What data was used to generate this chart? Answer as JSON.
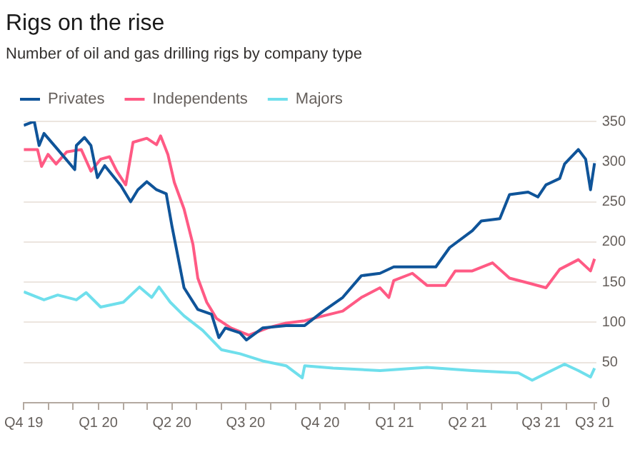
{
  "chart_data": {
    "type": "line",
    "title": "Rigs on the rise",
    "subtitle": "Number of oil and gas drilling rigs by company type",
    "xlim": [
      "2019-10-01",
      "2021-09-07"
    ],
    "xticks": [
      {
        "value": "2019-10-01",
        "label": "Q4 19"
      },
      {
        "value": "2019-11-01",
        "label": null
      },
      {
        "value": "2019-12-01",
        "label": null
      },
      {
        "value": "2020-01-01",
        "label": "Q1 20"
      },
      {
        "value": "2020-02-01",
        "label": null
      },
      {
        "value": "2020-03-01",
        "label": null
      },
      {
        "value": "2020-04-01",
        "label": "Q2 20"
      },
      {
        "value": "2020-05-01",
        "label": null
      },
      {
        "value": "2020-06-01",
        "label": null
      },
      {
        "value": "2020-07-01",
        "label": "Q3 20"
      },
      {
        "value": "2020-08-01",
        "label": null
      },
      {
        "value": "2020-09-01",
        "label": null
      },
      {
        "value": "2020-10-01",
        "label": "Q4 20"
      },
      {
        "value": "2020-11-01",
        "label": null
      },
      {
        "value": "2020-12-01",
        "label": null
      },
      {
        "value": "2021-01-01",
        "label": "Q1 21"
      },
      {
        "value": "2021-02-01",
        "label": null
      },
      {
        "value": "2021-03-01",
        "label": null
      },
      {
        "value": "2021-04-01",
        "label": "Q2 21"
      },
      {
        "value": "2021-05-01",
        "label": null
      },
      {
        "value": "2021-06-01",
        "label": null
      },
      {
        "value": "2021-07-01",
        "label": "Q3 21"
      },
      {
        "value": "2021-08-01",
        "label": null
      },
      {
        "value": "2021-09-05",
        "label": "Q3 21"
      }
    ],
    "ylim": [
      0,
      350
    ],
    "yticks": [
      0,
      50,
      100,
      150,
      200,
      250,
      300,
      350
    ],
    "grid": "y",
    "legend": "top left",
    "marker": "none",
    "line_style": "solid",
    "series": [
      {
        "name": "Privates",
        "color": "#0f5499",
        "x": [
          "2019-10-01",
          "2019-10-14",
          "2019-10-20",
          "2019-10-26",
          "2019-11-12",
          "2019-12-03",
          "2019-12-05",
          "2019-12-15",
          "2019-12-23",
          "2019-12-31",
          "2020-01-09",
          "2020-01-29",
          "2020-02-10",
          "2020-02-19",
          "2020-03-01",
          "2020-03-13",
          "2020-03-25",
          "2020-04-01",
          "2020-04-16",
          "2020-05-03",
          "2020-05-20",
          "2020-05-29",
          "2020-06-06",
          "2020-06-24",
          "2020-07-02",
          "2020-07-22",
          "2020-08-20",
          "2020-09-12",
          "2020-10-05",
          "2020-10-29",
          "2020-11-21",
          "2020-12-14",
          "2020-12-31",
          "2021-01-23",
          "2021-02-21",
          "2021-03-10",
          "2021-04-07",
          "2021-04-18",
          "2021-05-11",
          "2021-05-23",
          "2021-06-15",
          "2021-06-27",
          "2021-07-07",
          "2021-07-24",
          "2021-07-30",
          "2021-08-16",
          "2021-08-25",
          "2021-08-31",
          "2021-09-05"
        ],
        "values": [
          345,
          350,
          320,
          335,
          315,
          290,
          320,
          330,
          320,
          280,
          295,
          270,
          250,
          265,
          275,
          265,
          260,
          220,
          143,
          116,
          110,
          81,
          93,
          87,
          78,
          93,
          96,
          96,
          114,
          131,
          158,
          161,
          169,
          169,
          169,
          193,
          214,
          226,
          229,
          259,
          262,
          256,
          271,
          279,
          297,
          315,
          303,
          265,
          298
        ]
      },
      {
        "name": "Independents",
        "color": "#ff5a84",
        "x": [
          "2019-10-01",
          "2019-10-18",
          "2019-10-23",
          "2019-10-31",
          "2019-11-10",
          "2019-11-23",
          "2019-12-11",
          "2019-12-23",
          "2020-01-04",
          "2020-01-15",
          "2020-01-24",
          "2020-02-04",
          "2020-02-13",
          "2020-03-01",
          "2020-03-13",
          "2020-03-18",
          "2020-03-27",
          "2020-04-04",
          "2020-04-16",
          "2020-04-27",
          "2020-05-03",
          "2020-05-14",
          "2020-05-26",
          "2020-06-13",
          "2020-07-05",
          "2020-07-28",
          "2020-08-20",
          "2020-09-12",
          "2020-10-05",
          "2020-10-29",
          "2020-11-21",
          "2020-12-14",
          "2020-12-25",
          "2020-12-31",
          "2021-01-23",
          "2021-02-10",
          "2021-03-05",
          "2021-03-17",
          "2021-04-07",
          "2021-05-02",
          "2021-05-23",
          "2021-06-15",
          "2021-07-07",
          "2021-07-24",
          "2021-08-16",
          "2021-08-31",
          "2021-09-05"
        ],
        "values": [
          315,
          315,
          294,
          309,
          297,
          312,
          315,
          288,
          303,
          306,
          288,
          271,
          324,
          329,
          321,
          332,
          309,
          274,
          241,
          197,
          155,
          125,
          105,
          93,
          84,
          93,
          99,
          102,
          108,
          114,
          131,
          143,
          131,
          152,
          161,
          146,
          146,
          164,
          164,
          174,
          155,
          149,
          143,
          166,
          178,
          164,
          179
        ]
      },
      {
        "name": "Majors",
        "color": "#6fdfec",
        "x": [
          "2019-10-01",
          "2019-10-26",
          "2019-11-12",
          "2019-12-05",
          "2019-12-17",
          "2020-01-04",
          "2020-02-01",
          "2020-02-21",
          "2020-03-07",
          "2020-03-16",
          "2020-03-30",
          "2020-04-16",
          "2020-05-09",
          "2020-06-01",
          "2020-06-24",
          "2020-07-22",
          "2020-08-20",
          "2020-09-09",
          "2020-09-12",
          "2020-10-17",
          "2020-12-14",
          "2021-02-10",
          "2021-04-07",
          "2021-06-03",
          "2021-06-20",
          "2021-07-30",
          "2021-08-16",
          "2021-08-31",
          "2021-09-05"
        ],
        "values": [
          138,
          128,
          134,
          128,
          137,
          119,
          125,
          144,
          131,
          144,
          125,
          108,
          90,
          66,
          61,
          52,
          46,
          31,
          46,
          43,
          40,
          44,
          40,
          37,
          28,
          48,
          40,
          32,
          43
        ]
      }
    ]
  }
}
